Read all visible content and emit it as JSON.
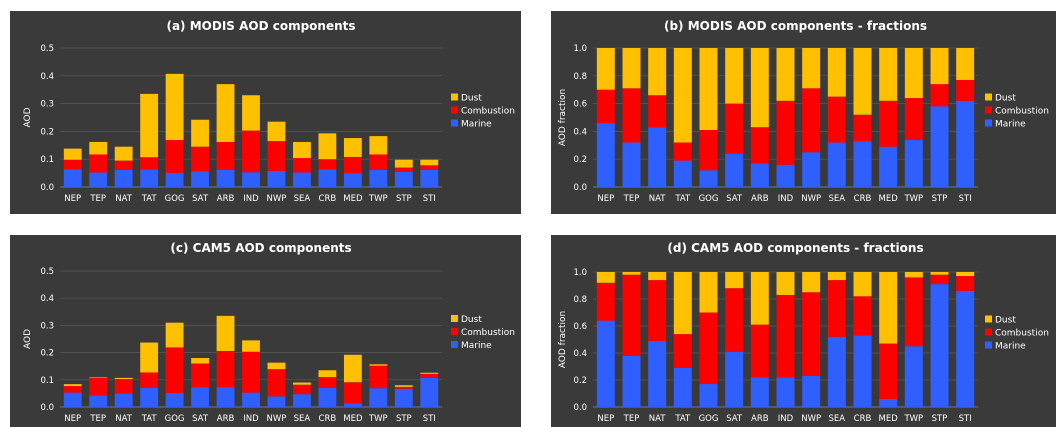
{
  "colors": {
    "marine": "#2f5fff",
    "combustion": "#ff0000",
    "dust": "#ffc000",
    "panel_bg": "#3a3a3a"
  },
  "chart_data": [
    {
      "id": "a",
      "type": "bar",
      "stacked": true,
      "title": "(a) MODIS AOD components",
      "ylabel": "AOD",
      "ylim": [
        0,
        0.5
      ],
      "yticks": [
        "0.0",
        "0.1",
        "0.2",
        "0.3",
        "0.4",
        "0.5"
      ],
      "categories": [
        "NEP",
        "TEP",
        "NAT",
        "TAT",
        "GOG",
        "SAT",
        "ARB",
        "IND",
        "NWP",
        "SEA",
        "CRB",
        "MED",
        "TWP",
        "STP",
        "STI"
      ],
      "legend": [
        "Dust",
        "Combustion",
        "Marine"
      ],
      "legend_position": "right",
      "grid": true,
      "series": [
        {
          "name": "Marine",
          "color_key": "marine",
          "values": [
            0.063,
            0.052,
            0.062,
            0.063,
            0.051,
            0.057,
            0.062,
            0.053,
            0.058,
            0.052,
            0.063,
            0.05,
            0.062,
            0.055,
            0.062
          ]
        },
        {
          "name": "Combustion",
          "color_key": "combustion",
          "values": [
            0.035,
            0.065,
            0.033,
            0.044,
            0.118,
            0.088,
            0.1,
            0.15,
            0.107,
            0.052,
            0.037,
            0.058,
            0.055,
            0.015,
            0.016
          ]
        },
        {
          "name": "Dust",
          "color_key": "dust",
          "values": [
            0.04,
            0.045,
            0.05,
            0.228,
            0.238,
            0.097,
            0.208,
            0.127,
            0.07,
            0.058,
            0.093,
            0.068,
            0.066,
            0.028,
            0.02
          ]
        }
      ]
    },
    {
      "id": "b",
      "type": "bar",
      "stacked": true,
      "title": "(b) MODIS AOD components - fractions",
      "ylabel": "AOD fraction",
      "ylim": [
        0,
        1.0
      ],
      "yticks": [
        "0.0",
        "0.2",
        "0.4",
        "0.6",
        "0.8",
        "1.0"
      ],
      "categories": [
        "NEP",
        "TEP",
        "NAT",
        "TAT",
        "GOG",
        "SAT",
        "ARB",
        "IND",
        "NWP",
        "SEA",
        "CRB",
        "MED",
        "TWP",
        "STP",
        "STI"
      ],
      "legend": [
        "Dust",
        "Combustion",
        "Marine"
      ],
      "legend_position": "right",
      "grid": true,
      "series": [
        {
          "name": "Marine",
          "color_key": "marine",
          "values": [
            0.46,
            0.32,
            0.43,
            0.19,
            0.12,
            0.24,
            0.17,
            0.16,
            0.25,
            0.32,
            0.33,
            0.29,
            0.34,
            0.58,
            0.62
          ]
        },
        {
          "name": "Combustion",
          "color_key": "combustion",
          "values": [
            0.24,
            0.39,
            0.23,
            0.13,
            0.29,
            0.36,
            0.26,
            0.46,
            0.46,
            0.33,
            0.19,
            0.33,
            0.3,
            0.16,
            0.15
          ]
        },
        {
          "name": "Dust",
          "color_key": "dust",
          "values": [
            0.3,
            0.29,
            0.34,
            0.68,
            0.59,
            0.4,
            0.57,
            0.38,
            0.29,
            0.35,
            0.48,
            0.38,
            0.36,
            0.26,
            0.23
          ]
        }
      ]
    },
    {
      "id": "c",
      "type": "bar",
      "stacked": true,
      "title": "(c) CAM5 AOD components",
      "ylabel": "AOD",
      "ylim": [
        0,
        0.5
      ],
      "yticks": [
        "0.0",
        "0.1",
        "0.2",
        "0.3",
        "0.4",
        "0.5"
      ],
      "categories": [
        "NEP",
        "TEP",
        "NAT",
        "TAT",
        "GOG",
        "SAT",
        "ARB",
        "IND",
        "NWP",
        "SEA",
        "CRB",
        "MED",
        "TWP",
        "STP",
        "STI"
      ],
      "legend": [
        "Dust",
        "Combustion",
        "Marine"
      ],
      "legend_position": "right",
      "grid": true,
      "series": [
        {
          "name": "Marine",
          "color_key": "marine",
          "values": [
            0.053,
            0.042,
            0.05,
            0.07,
            0.052,
            0.073,
            0.073,
            0.053,
            0.039,
            0.047,
            0.07,
            0.013,
            0.069,
            0.067,
            0.107
          ]
        },
        {
          "name": "Combustion",
          "color_key": "combustion",
          "values": [
            0.024,
            0.066,
            0.053,
            0.057,
            0.167,
            0.087,
            0.133,
            0.15,
            0.1,
            0.035,
            0.04,
            0.078,
            0.083,
            0.007,
            0.015
          ]
        },
        {
          "name": "Dust",
          "color_key": "dust",
          "values": [
            0.007,
            0.002,
            0.004,
            0.11,
            0.091,
            0.02,
            0.129,
            0.042,
            0.024,
            0.008,
            0.025,
            0.101,
            0.005,
            0.006,
            0.004
          ]
        }
      ]
    },
    {
      "id": "d",
      "type": "bar",
      "stacked": true,
      "title": "(d) CAM5 AOD components - fractions",
      "ylabel": "AOD fraction",
      "ylim": [
        0,
        1.0
      ],
      "yticks": [
        "0.0",
        "0.2",
        "0.4",
        "0.6",
        "0.8",
        "1.0"
      ],
      "categories": [
        "NEP",
        "TEP",
        "NAT",
        "TAT",
        "GOG",
        "SAT",
        "ARB",
        "IND",
        "NWP",
        "SEA",
        "CRB",
        "MED",
        "TWP",
        "STP",
        "STI"
      ],
      "legend": [
        "Dust",
        "Combustion",
        "Marine"
      ],
      "legend_position": "right",
      "grid": true,
      "series": [
        {
          "name": "Marine",
          "color_key": "marine",
          "values": [
            0.64,
            0.38,
            0.49,
            0.29,
            0.17,
            0.41,
            0.22,
            0.22,
            0.23,
            0.52,
            0.53,
            0.06,
            0.45,
            0.91,
            0.86
          ]
        },
        {
          "name": "Combustion",
          "color_key": "combustion",
          "values": [
            0.28,
            0.6,
            0.45,
            0.25,
            0.53,
            0.47,
            0.39,
            0.61,
            0.62,
            0.42,
            0.29,
            0.41,
            0.51,
            0.07,
            0.11
          ]
        },
        {
          "name": "Dust",
          "color_key": "dust",
          "values": [
            0.08,
            0.02,
            0.06,
            0.46,
            0.3,
            0.12,
            0.39,
            0.17,
            0.15,
            0.06,
            0.18,
            0.53,
            0.04,
            0.02,
            0.03
          ]
        }
      ]
    }
  ]
}
